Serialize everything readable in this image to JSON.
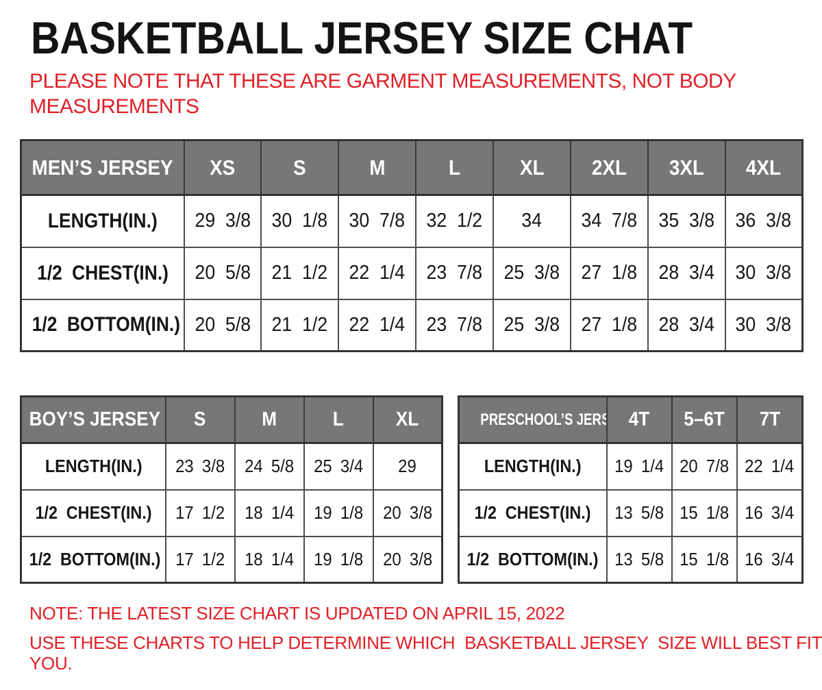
{
  "title": "BASKETBALL JERSEY SIZE CHAT",
  "intro_note": {
    "line1": "PLEASE NOTE THAT THESE ARE GARMENT MEASUREMENTS, NOT BODY",
    "line2": "MEASUREMENTS"
  },
  "tables": {
    "mens": {
      "columns": [
        "MEN’S JERSEY",
        "XS",
        "S",
        "M",
        "L",
        "XL",
        "2XL",
        "3XL",
        "4XL"
      ],
      "rows": [
        {
          "label": "LENGTH(IN.)",
          "values": [
            "29 3/8",
            "30 1/8",
            "30 7/8",
            "32 1/2",
            "34",
            "34 7/8",
            "35 3/8",
            "36 3/8"
          ]
        },
        {
          "label": "1/2 CHEST(IN.)",
          "values": [
            "20 5/8",
            "21 1/2",
            "22 1/4",
            "23 7/8",
            "25 3/8",
            "27 1/8",
            "28 3/4",
            "30 3/8"
          ]
        },
        {
          "label": "1/2 BOTTOM(IN.)",
          "values": [
            "20 5/8",
            "21 1/2",
            "22 1/4",
            "23 7/8",
            "25 3/8",
            "27 1/8",
            "28 3/4",
            "30 3/8"
          ]
        }
      ]
    },
    "boys": {
      "columns": [
        "BOY’S JERSEY",
        "S",
        "M",
        "L",
        "XL"
      ],
      "rows": [
        {
          "label": "LENGTH(IN.)",
          "values": [
            "23 3/8",
            "24 5/8",
            "25 3/4",
            "29"
          ]
        },
        {
          "label": "1/2 CHEST(IN.)",
          "values": [
            "17 1/2",
            "18 1/4",
            "19 1/8",
            "20 3/8"
          ]
        },
        {
          "label": "1/2 BOTTOM(IN.)",
          "values": [
            "17 1/2",
            "18 1/4",
            "19 1/8",
            "20 3/8"
          ]
        }
      ]
    },
    "preschool": {
      "columns": [
        "PRESCHOOL’S JERSEY",
        "4T",
        "5–6T",
        "7T"
      ],
      "rows": [
        {
          "label": "LENGTH(IN.)",
          "values": [
            "19 1/4",
            "20 7/8",
            "22 1/4"
          ]
        },
        {
          "label": "1/2 CHEST(IN.)",
          "values": [
            "13 5/8",
            "15 1/8",
            "16 3/4"
          ]
        },
        {
          "label": "1/2 BOTTOM(IN.)",
          "values": [
            "13 5/8",
            "15 1/8",
            "16 3/4"
          ]
        }
      ]
    }
  },
  "footer_notes": {
    "update": "NOTE: THE LATEST SIZE CHART IS UPDATED ON APRIL 15, 2022",
    "usage": "USE THESE CHARTS TO HELP DETERMINE WHICH  BASKETBALL JERSEY  SIZE WILL BEST FIT YOU."
  },
  "colors": {
    "header_bg": "#777777",
    "header_text": "#ffffff",
    "note_red": "#e01f26",
    "border_dark": "#333333",
    "border_mid": "#4d4d4d",
    "text_dark": "#161616",
    "page_bg": "#ffffff"
  }
}
